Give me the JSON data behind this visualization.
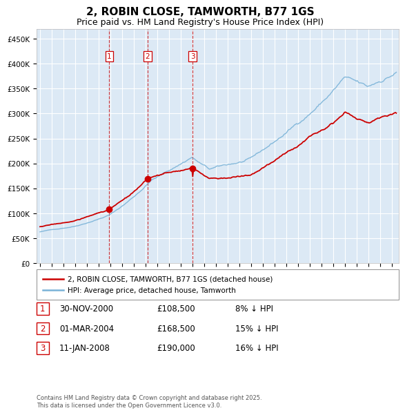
{
  "title": "2, ROBIN CLOSE, TAMWORTH, B77 1GS",
  "subtitle": "Price paid vs. HM Land Registry's House Price Index (HPI)",
  "title_fontsize": 11,
  "subtitle_fontsize": 9,
  "background_color": "#ffffff",
  "plot_bg_color": "#dce9f5",
  "grid_color": "#ffffff",
  "ylim": [
    0,
    470000
  ],
  "yticks": [
    0,
    50000,
    100000,
    150000,
    200000,
    250000,
    300000,
    350000,
    400000,
    450000
  ],
  "hpi_color": "#7ab3d8",
  "price_color": "#cc0000",
  "purchase_dates": [
    2000.917,
    2004.167,
    2008.033
  ],
  "purchase_prices": [
    108500,
    168500,
    190000
  ],
  "purchase_labels": [
    "1",
    "2",
    "3"
  ],
  "vline_color": "#cc0000",
  "legend_hpi": "HPI: Average price, detached house, Tamworth",
  "legend_price": "2, ROBIN CLOSE, TAMWORTH, B77 1GS (detached house)",
  "table_rows": [
    [
      "1",
      "30-NOV-2000",
      "£108,500",
      "8% ↓ HPI"
    ],
    [
      "2",
      "01-MAR-2004",
      "£168,500",
      "15% ↓ HPI"
    ],
    [
      "3",
      "11-JAN-2008",
      "£190,000",
      "16% ↓ HPI"
    ]
  ],
  "footnote": "Contains HM Land Registry data © Crown copyright and database right 2025.\nThis data is licensed under the Open Government Licence v3.0.",
  "xstart": 1995,
  "xend": 2025
}
